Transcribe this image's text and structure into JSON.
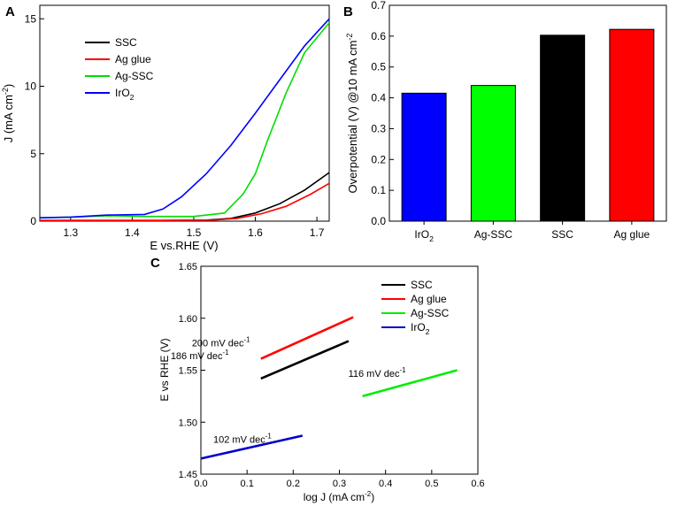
{
  "chart_data": [
    {
      "panel": "A",
      "type": "line",
      "xlabel": "E vs.RHE (V)",
      "ylabel": {
        "main": "J (mA cm",
        "sup": "-2",
        "close": ")"
      },
      "xlim": [
        1.25,
        1.72
      ],
      "ylim": [
        0,
        16
      ],
      "xticks": [
        "1.3",
        "1.4",
        "1.5",
        "1.6",
        "1.7"
      ],
      "yticks": [
        "0",
        "5",
        "10",
        "15"
      ],
      "xtick_values": [
        1.3,
        1.4,
        1.5,
        1.6,
        1.7
      ],
      "ytick_values": [
        0,
        5,
        10,
        15
      ],
      "legend": "top-left",
      "series": [
        {
          "name": "SSC",
          "label": "SSC",
          "color": "#000000",
          "x": [
            1.25,
            1.45,
            1.52,
            1.56,
            1.6,
            1.64,
            1.68,
            1.72
          ],
          "y": [
            0.05,
            0.05,
            0.08,
            0.2,
            0.6,
            1.3,
            2.3,
            3.6
          ]
        },
        {
          "name": "Ag glue",
          "label": "Ag glue",
          "color": "#ff0000",
          "x": [
            1.25,
            1.45,
            1.53,
            1.57,
            1.61,
            1.65,
            1.69,
            1.72
          ],
          "y": [
            0.05,
            0.05,
            0.08,
            0.2,
            0.55,
            1.1,
            2.0,
            2.8
          ]
        },
        {
          "name": "Ag-SSC",
          "label": "Ag-SSC",
          "color": "#00dd00",
          "x": [
            1.25,
            1.3,
            1.36,
            1.42,
            1.5,
            1.55,
            1.58,
            1.6,
            1.62,
            1.65,
            1.68,
            1.72
          ],
          "y": [
            0.25,
            0.3,
            0.4,
            0.35,
            0.35,
            0.6,
            2.0,
            3.5,
            6.0,
            9.5,
            12.5,
            14.7
          ]
        },
        {
          "name": "IrO2",
          "label": {
            "main": "IrO",
            "sub": "2"
          },
          "color": "#0000ff",
          "x": [
            1.25,
            1.3,
            1.36,
            1.42,
            1.45,
            1.48,
            1.52,
            1.56,
            1.6,
            1.64,
            1.68,
            1.72
          ],
          "y": [
            0.25,
            0.3,
            0.45,
            0.5,
            0.9,
            1.8,
            3.5,
            5.6,
            8.0,
            10.5,
            13.0,
            15.0
          ]
        }
      ]
    },
    {
      "panel": "B",
      "type": "bar",
      "ylabel": {
        "main": "Overpotential (V) @10 mA cm",
        "sup": "-2"
      },
      "ylim": [
        0.0,
        0.7
      ],
      "yticks": [
        "0.0",
        "0.1",
        "0.2",
        "0.3",
        "0.4",
        "0.5",
        "0.6",
        "0.7"
      ],
      "ytick_values": [
        0.0,
        0.1,
        0.2,
        0.3,
        0.4,
        0.5,
        0.6,
        0.7
      ],
      "categories": [
        {
          "main": "IrO",
          "sub": "2"
        },
        {
          "main": "Ag-SSC"
        },
        {
          "main": "SSC"
        },
        {
          "main": "Ag glue"
        }
      ],
      "values": [
        0.415,
        0.44,
        0.603,
        0.622
      ],
      "colors": [
        "#0000ff",
        "#00ff00",
        "#000000",
        "#ff0000"
      ]
    },
    {
      "panel": "C",
      "type": "line",
      "xlabel": {
        "main": "log J (mA cm",
        "sup": "-2",
        "close": ")"
      },
      "ylabel": "E vs RHE (V)",
      "xlim": [
        0.0,
        0.6
      ],
      "ylim": [
        1.45,
        1.65
      ],
      "xticks": [
        "0.0",
        "0.1",
        "0.2",
        "0.3",
        "0.4",
        "0.5",
        "0.6"
      ],
      "yticks": [
        "1.45",
        "1.50",
        "1.55",
        "1.60",
        "1.65"
      ],
      "xtick_values": [
        0.0,
        0.1,
        0.2,
        0.3,
        0.4,
        0.5,
        0.6
      ],
      "ytick_values": [
        1.45,
        1.5,
        1.55,
        1.6,
        1.65
      ],
      "legend": "top-right",
      "series": [
        {
          "name": "SSC",
          "label": "SSC",
          "color": "#000000",
          "x": [
            0.13,
            0.32
          ],
          "y": [
            1.542,
            1.578
          ],
          "annotation": {
            "main": "186 mV dec",
            "sup": "-1"
          }
        },
        {
          "name": "Ag glue",
          "label": "Ag glue",
          "color": "#ff0000",
          "x": [
            0.13,
            0.33
          ],
          "y": [
            1.561,
            1.601
          ],
          "annotation": {
            "main": "200 mV dec",
            "sup": "-1"
          }
        },
        {
          "name": "Ag-SSC",
          "label": "Ag-SSC",
          "color": "#00ee00",
          "x": [
            0.35,
            0.555
          ],
          "y": [
            1.525,
            1.55
          ],
          "annotation": {
            "main": "116 mV dec",
            "sup": "-1"
          }
        },
        {
          "name": "IrO2",
          "label": {
            "main": "IrO",
            "sub": "2"
          },
          "color": "#0000cc",
          "x": [
            0.0,
            0.22
          ],
          "y": [
            1.465,
            1.487
          ],
          "annotation": {
            "main": "102 mV dec",
            "sup": "-1"
          }
        }
      ]
    }
  ],
  "panel_labels": [
    "A",
    "B",
    "C"
  ]
}
